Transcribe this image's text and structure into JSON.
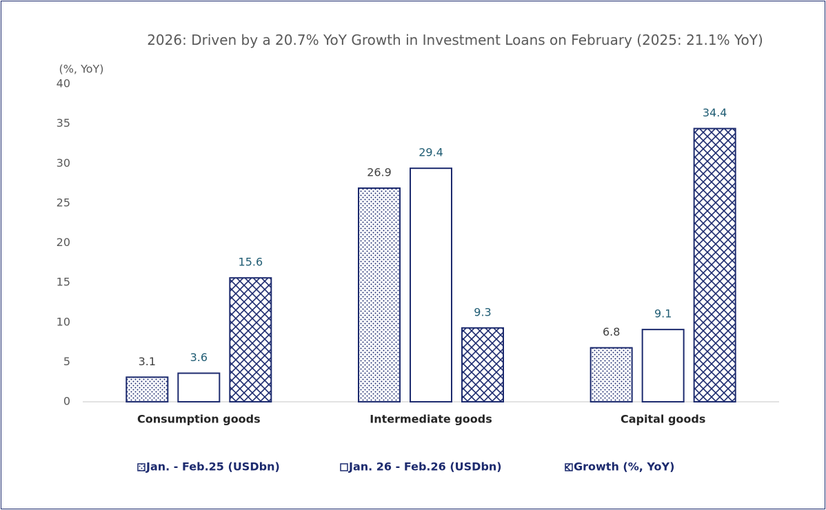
{
  "chart_data": {
    "type": "bar",
    "title": "2026: Driven by a 20.7% YoY Growth in Investment Loans on February (2025: 21.1% YoY)",
    "y_axis_label": "(%, YoY)",
    "categories": [
      "Consumption goods",
      "Intermediate goods",
      "Capital goods"
    ],
    "series": [
      {
        "name": "Jan. - Feb.25 (USDbn)",
        "color": "#1c2a6e",
        "pattern": "dots",
        "label_color": "#404040",
        "values": [
          3.1,
          26.9,
          6.8
        ]
      },
      {
        "name": "Jan. 26 - Feb.26 (USDbn)",
        "color": "#1c2a6e",
        "pattern": "none",
        "label_color": "#1f5c73",
        "values": [
          3.6,
          29.4,
          9.1
        ]
      },
      {
        "name": "Growth (%, YoY)",
        "color": "#1c2a6e",
        "pattern": "crosshatch",
        "label_color": "#1f5c73",
        "values": [
          15.6,
          9.3,
          34.4
        ]
      }
    ],
    "ylim": [
      0,
      40
    ],
    "yticks": [
      0,
      5,
      10,
      15,
      20,
      25,
      30,
      35,
      40
    ],
    "grid": false,
    "legend": "bottom"
  }
}
